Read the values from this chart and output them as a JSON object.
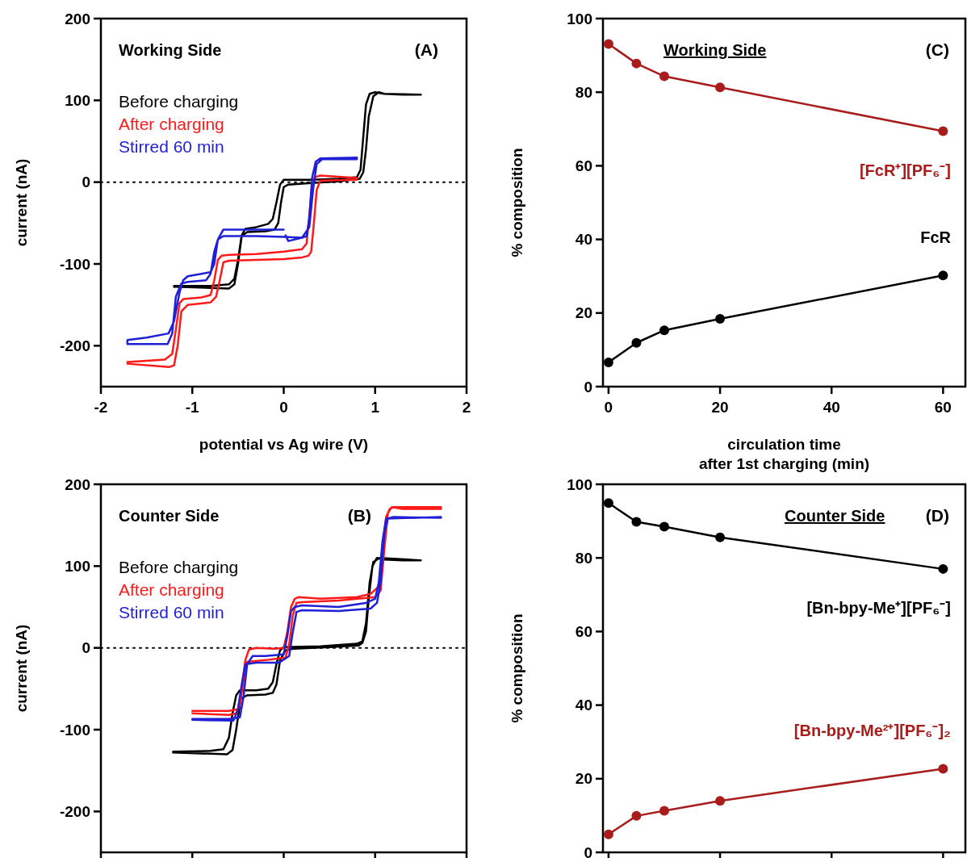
{
  "chart_data": [
    {
      "type": "line",
      "ylabel": "current (nA)",
      "xlabel": "potential vs Ag wire (V)",
      "annotations": [
        "Working Side",
        "(A)"
      ],
      "xlim": [
        -2,
        2
      ],
      "xticks": [
        -2,
        -1,
        0,
        1,
        2
      ],
      "ylim": [
        -250,
        200
      ],
      "yticks": [
        -200,
        -100,
        0,
        100,
        200
      ],
      "legend": "top left",
      "ref_lines": [
        {
          "axis": "y",
          "value": 0,
          "line_style": "dotted"
        }
      ],
      "series": [
        {
          "name": "Before charging",
          "color": "#000000",
          "x": [
            -1.2,
            -0.8,
            -0.6,
            -0.54,
            -0.5,
            -0.46,
            -0.42,
            -0.3,
            -0.17,
            -0.12,
            -0.08,
            -0.04,
            0,
            0.3,
            0.6,
            0.8,
            0.84,
            0.87,
            0.9,
            0.94,
            1.0,
            1.1,
            1.5,
            1.3,
            1.1,
            1.04,
            0.98,
            0.93,
            0.9,
            0.87,
            0.83,
            0.6,
            0.3,
            0.05,
            0,
            -0.03,
            -0.06,
            -0.1,
            -0.2,
            -0.4,
            -0.46,
            -0.5,
            -0.54,
            -0.6,
            -1.2
          ],
          "values": [
            -127,
            -127,
            -125,
            -118,
            -95,
            -65,
            -57,
            -55,
            -51,
            -45,
            -25,
            -3,
            3,
            3,
            4,
            6,
            15,
            55,
            95,
            108,
            110,
            108,
            107,
            107,
            108,
            110,
            105,
            80,
            40,
            12,
            4,
            1,
            -1,
            -3,
            -6,
            -25,
            -50,
            -58,
            -60,
            -61,
            -66,
            -100,
            -125,
            -130,
            -128
          ]
        },
        {
          "name": "After charging",
          "color": "#ff1a1a",
          "x": [
            -1.71,
            -1.3,
            -1.22,
            -1.18,
            -1.14,
            -1.1,
            -0.9,
            -0.8,
            -0.76,
            -0.72,
            -0.68,
            -0.6,
            -0.3,
            0,
            0.2,
            0.25,
            0.28,
            0.31,
            0.34,
            0.4,
            0.8,
            0.8,
            0.4,
            0.36,
            0.33,
            0.3,
            0.27,
            0.2,
            0,
            -0.3,
            -0.6,
            -0.66,
            -0.7,
            -0.74,
            -0.8,
            -1.05,
            -1.12,
            -1.16,
            -1.2,
            -1.25,
            -1.71
          ],
          "values": [
            -220,
            -217,
            -210,
            -180,
            -148,
            -143,
            -141,
            -138,
            -120,
            -95,
            -90,
            -89,
            -88,
            -85,
            -82,
            -75,
            -40,
            -5,
            6,
            8,
            5,
            3,
            2,
            -10,
            -50,
            -85,
            -90,
            -92,
            -94,
            -95,
            -96,
            -98,
            -120,
            -140,
            -147,
            -150,
            -158,
            -200,
            -224,
            -226,
            -222
          ]
        },
        {
          "name": "Stirred 60 min",
          "color": "#1f1fd6",
          "x": [
            0,
            -0.4,
            -0.66,
            -0.72,
            -0.76,
            -0.8,
            -0.9,
            -1.05,
            -1.1,
            -1.14,
            -1.2,
            -1.26,
            -1.5,
            -1.71,
            -1.71,
            -1.27,
            -1.22,
            -1.18,
            -1.12,
            -1.05,
            -0.85,
            -0.8,
            -0.76,
            -0.72,
            -0.66,
            -0.3,
            0.0,
            0.2,
            0.25,
            0.28,
            0.31,
            0.35,
            0.4,
            0.8,
            0.8,
            0.42,
            0.36,
            0.32,
            0.28,
            0.2,
            0.05,
            0.02
          ],
          "values": [
            -58,
            -58,
            -58,
            -70,
            -100,
            -110,
            -112,
            -115,
            -120,
            -135,
            -170,
            -185,
            -190,
            -193,
            -198,
            -198,
            -185,
            -140,
            -124,
            -122,
            -120,
            -112,
            -85,
            -70,
            -66,
            -66,
            -67,
            -68,
            -66,
            -45,
            5,
            25,
            29,
            30,
            28,
            28,
            22,
            -10,
            -55,
            -68,
            -72,
            -65
          ]
        }
      ]
    },
    {
      "type": "line",
      "ylabel": "% composition",
      "xlabel": "circulation time\nafter 1st charging (min)",
      "annotations": [
        "Working Side",
        "(C)"
      ],
      "x": [
        0,
        5,
        10,
        20,
        60
      ],
      "xlim": [
        -1,
        64
      ],
      "xticks": [
        0,
        20,
        40,
        60
      ],
      "ylim": [
        0,
        100
      ],
      "yticks": [
        0,
        20,
        40,
        60,
        80,
        100
      ],
      "marker": "circle",
      "legend": false,
      "series": [
        {
          "name": "[FcR⁺][PF₆⁻]",
          "color": "#a81c1c",
          "values": [
            93.1,
            87.8,
            84.3,
            81.3,
            69.4
          ]
        },
        {
          "name": "FcR",
          "color": "#000000",
          "values": [
            6.6,
            11.9,
            15.3,
            18.4,
            30.2
          ]
        }
      ]
    },
    {
      "type": "line",
      "ylabel": "current (nA)",
      "annotations": [
        "Counter Side",
        "(B)"
      ],
      "xlim": [
        -2,
        2
      ],
      "xticks": [
        -2,
        -1,
        0,
        1,
        2
      ],
      "ylim": [
        -250,
        200
      ],
      "yticks": [
        -200,
        -100,
        0,
        100,
        200
      ],
      "tick_labels": "y",
      "legend": "top left",
      "ref_lines": [
        {
          "axis": "y",
          "value": 0,
          "line_style": "dotted"
        }
      ],
      "series": [
        {
          "name": "Before charging",
          "color": "#000000",
          "x": [
            -1.21,
            -0.8,
            -0.66,
            -0.6,
            -0.56,
            -0.52,
            -0.48,
            -0.3,
            -0.17,
            -0.12,
            -0.08,
            -0.04,
            0,
            0.4,
            0.8,
            0.86,
            0.9,
            0.94,
            0.98,
            1.05,
            1.5,
            1.3,
            1.1,
            1.02,
            0.97,
            0.93,
            0.9,
            0.86,
            0.82,
            0.5,
            0.1,
            0.02,
            -0.04,
            -0.08,
            -0.12,
            -0.2,
            -0.4,
            -0.47,
            -0.52,
            -0.56,
            -0.62,
            -1.21
          ],
          "values": [
            -127,
            -126,
            -124,
            -110,
            -80,
            -58,
            -52,
            -52,
            -50,
            -42,
            -20,
            -3,
            1,
            2,
            5,
            8,
            30,
            80,
            105,
            110,
            107,
            107,
            108,
            110,
            100,
            60,
            20,
            6,
            3,
            1,
            -1,
            -3,
            -15,
            -45,
            -55,
            -57,
            -58,
            -62,
            -100,
            -125,
            -130,
            -128
          ]
        },
        {
          "name": "After charging",
          "color": "#ff1a1a",
          "x": [
            -1.0,
            -0.6,
            -0.5,
            -0.46,
            -0.42,
            -0.38,
            -0.3,
            -0.1,
            0.0,
            0.04,
            0.08,
            0.12,
            0.16,
            0.4,
            0.8,
            0.95,
            1.04,
            1.08,
            1.12,
            1.16,
            1.2,
            1.72,
            1.72,
            1.3,
            1.18,
            1.14,
            1.1,
            1.06,
            1.0,
            0.6,
            0.2,
            0.14,
            0.1,
            0.06,
            0.02,
            -0.2,
            -0.4,
            -0.44,
            -0.48,
            -0.52,
            -0.6,
            -1.0
          ],
          "values": [
            -77,
            -77,
            -75,
            -50,
            -15,
            -2,
            0,
            -1,
            0,
            20,
            50,
            60,
            62,
            60,
            62,
            66,
            75,
            120,
            160,
            170,
            172,
            172,
            170,
            170,
            172,
            165,
            120,
            70,
            62,
            58,
            56,
            55,
            40,
            5,
            -12,
            -15,
            -17,
            -40,
            -70,
            -80,
            -82,
            -80
          ]
        },
        {
          "name": "Stirred 60 min",
          "color": "#1f1fd6",
          "x": [
            -1.0,
            -0.6,
            -0.48,
            -0.44,
            -0.4,
            -0.34,
            -0.2,
            0.0,
            0.04,
            0.08,
            0.12,
            0.2,
            0.6,
            0.9,
            1.0,
            1.04,
            1.08,
            1.12,
            1.72,
            1.72,
            1.2,
            1.14,
            1.1,
            1.06,
            1.02,
            0.95,
            0.6,
            0.2,
            0.14,
            0.1,
            0.06,
            -0.05,
            -0.3,
            -0.42,
            -0.46,
            -0.5,
            -0.55,
            -1.0
          ],
          "values": [
            -87,
            -87,
            -85,
            -60,
            -20,
            -10,
            -10,
            -8,
            15,
            45,
            50,
            52,
            50,
            55,
            60,
            80,
            130,
            158,
            160,
            159,
            160,
            158,
            140,
            80,
            55,
            48,
            45,
            46,
            44,
            20,
            -10,
            -18,
            -18,
            -20,
            -45,
            -75,
            -89,
            -88
          ]
        }
      ]
    },
    {
      "type": "line",
      "ylabel": "% composition",
      "annotations": [
        "Counter Side",
        "(D)"
      ],
      "x": [
        0,
        5,
        10,
        20,
        60
      ],
      "xlim": [
        -1,
        64
      ],
      "xticks": [
        0,
        20,
        40,
        60
      ],
      "ylim": [
        0,
        100
      ],
      "yticks": [
        0,
        20,
        40,
        60,
        80,
        100
      ],
      "tick_labels": "y",
      "marker": "circle",
      "legend": false,
      "series": [
        {
          "name": "[Bn-bpy-Me⁺][PF₆⁻]",
          "color": "#000000",
          "values": [
            94.9,
            89.8,
            88.5,
            85.6,
            77.0
          ]
        },
        {
          "name": "[Bn-bpy-Me²⁺][PF₆⁻]₂",
          "color": "#a81c1c",
          "values": [
            4.9,
            9.9,
            11.3,
            14.0,
            22.7
          ]
        }
      ]
    }
  ]
}
